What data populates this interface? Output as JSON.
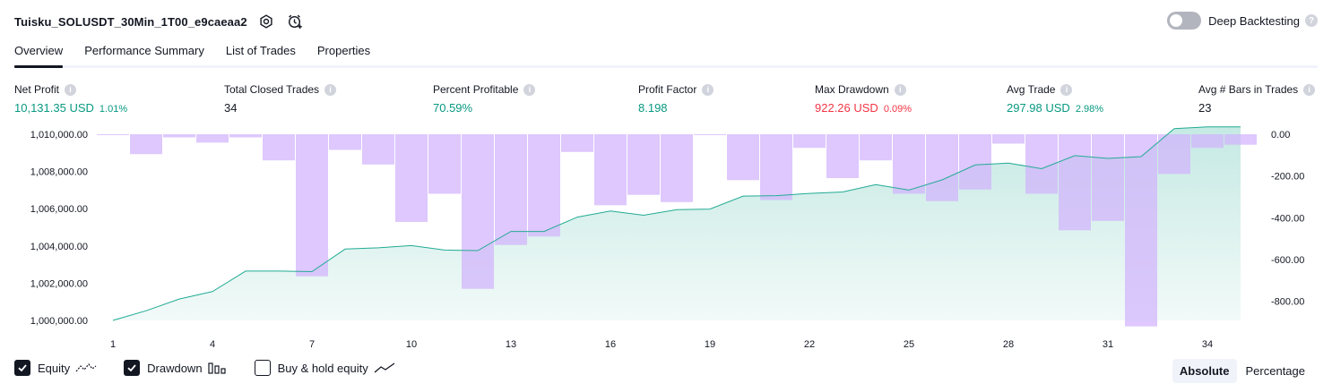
{
  "header": {
    "title": "Tuisku_SOLUSDT_30Min_1T00_e9caeaa2",
    "settings_icon": "gear-icon",
    "alert_icon": "alarm-clock-plus-icon",
    "deep_backtesting_label": "Deep Backtesting",
    "deep_backtesting_enabled": false,
    "help_glyph": "?"
  },
  "tabs": [
    {
      "label": "Overview",
      "active": true
    },
    {
      "label": "Performance Summary",
      "active": false
    },
    {
      "label": "List of Trades",
      "active": false
    },
    {
      "label": "Properties",
      "active": false
    }
  ],
  "stats": [
    {
      "label": "Net Profit",
      "value": "10,131.35 USD",
      "pct": "1.01%",
      "color": "#089981"
    },
    {
      "label": "Total Closed Trades",
      "value": "34",
      "pct": "",
      "color": "#131722"
    },
    {
      "label": "Percent Profitable",
      "value": "70.59%",
      "pct": "",
      "color": "#089981"
    },
    {
      "label": "Profit Factor",
      "value": "8.198",
      "pct": "",
      "color": "#089981"
    },
    {
      "label": "Max Drawdown",
      "value": "922.26 USD",
      "pct": "0.09%",
      "color": "#f23645"
    },
    {
      "label": "Avg Trade",
      "value": "297.98 USD",
      "pct": "2.98%",
      "color": "#089981"
    },
    {
      "label": "Avg # Bars in Trades",
      "value": "23",
      "pct": "",
      "color": "#131722"
    }
  ],
  "info_glyph": "i",
  "chart_data": {
    "type": "area",
    "x_ticks": [
      "1",
      "4",
      "7",
      "10",
      "13",
      "16",
      "19",
      "22",
      "25",
      "28",
      "31",
      "34"
    ],
    "left_axis": {
      "ticks": [
        "1,010,000.00",
        "1,008,000.00",
        "1,006,000.00",
        "1,004,000.00",
        "1,002,000.00",
        "1,000,000.00"
      ],
      "ylim": [
        1000000,
        1010000
      ]
    },
    "right_axis": {
      "ticks": [
        "0.00",
        "-200.00",
        "-400.00",
        "-600.00",
        "-800.00"
      ],
      "ylim": [
        -900,
        0
      ]
    },
    "equity": {
      "x": [
        1,
        2,
        3,
        4,
        5,
        6,
        7,
        8,
        9,
        10,
        11,
        12,
        13,
        14,
        15,
        16,
        17,
        18,
        19,
        20,
        21,
        22,
        23,
        24,
        25,
        26,
        27,
        28,
        29,
        30,
        31,
        32,
        33,
        34,
        35
      ],
      "values": [
        1000000,
        1000520,
        1001150,
        1001550,
        1002650,
        1002650,
        1002620,
        1003830,
        1003900,
        1004020,
        1003780,
        1003750,
        1004780,
        1004780,
        1005550,
        1005880,
        1005650,
        1005950,
        1005980,
        1006680,
        1006700,
        1006820,
        1006900,
        1007300,
        1007000,
        1007550,
        1008350,
        1008450,
        1008150,
        1008850,
        1008700,
        1008800,
        1010300,
        1010400,
        1010400
      ],
      "color": "#22ab94"
    },
    "drawdown": {
      "x": [
        1,
        2,
        3,
        4,
        5,
        6,
        7,
        8,
        9,
        10,
        11,
        12,
        13,
        14,
        15,
        16,
        17,
        18,
        19,
        20,
        21,
        22,
        23,
        24,
        25,
        26,
        27,
        28,
        29,
        30,
        31,
        32,
        33,
        34,
        35
      ],
      "values": [
        0,
        -95,
        -15,
        -40,
        -15,
        -125,
        -680,
        -75,
        -145,
        -420,
        -285,
        -740,
        -530,
        -490,
        -85,
        -340,
        -290,
        -325,
        0,
        -220,
        -315,
        -65,
        -210,
        -125,
        -285,
        -320,
        -265,
        -45,
        -285,
        -460,
        -415,
        -920,
        -190,
        -65,
        -50
      ],
      "color": "#d1b3fc"
    }
  },
  "legend": {
    "equity": {
      "label": "Equity",
      "checked": true,
      "icon": "equity-line-icon"
    },
    "drawdown": {
      "label": "Drawdown",
      "checked": true,
      "icon": "drawdown-bars-icon"
    },
    "buy_hold": {
      "label": "Buy & hold equity",
      "checked": false,
      "icon": "buy-hold-line-icon"
    }
  },
  "modes": [
    {
      "label": "Absolute",
      "active": true
    },
    {
      "label": "Percentage",
      "active": false
    }
  ]
}
